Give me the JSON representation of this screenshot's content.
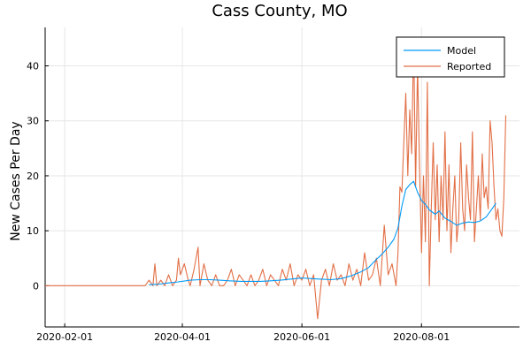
{
  "chart_data": {
    "type": "line",
    "title": "Cass County, MO",
    "xlabel": "",
    "ylabel": "New Cases Per Day",
    "x_type": "date",
    "xlim": [
      "2020-01-22",
      "2020-09-20"
    ],
    "ylim": [
      -7.5,
      47
    ],
    "x_ticks": [
      "2020-02-01",
      "2020-04-01",
      "2020-06-01",
      "2020-08-01"
    ],
    "y_ticks": [
      0,
      10,
      20,
      30,
      40
    ],
    "grid": true,
    "legend_position": "top-right",
    "colors": {
      "Model": "#009af9",
      "Reported": "#e26f46",
      "axis": "#000000",
      "grid": "#e6e6e6"
    },
    "series": [
      {
        "name": "Model",
        "x": [
          "2020-03-15",
          "2020-03-20",
          "2020-03-25",
          "2020-03-30",
          "2020-04-05",
          "2020-04-10",
          "2020-04-15",
          "2020-04-20",
          "2020-04-25",
          "2020-05-01",
          "2020-05-06",
          "2020-05-11",
          "2020-05-16",
          "2020-05-21",
          "2020-05-26",
          "2020-06-01",
          "2020-06-06",
          "2020-06-11",
          "2020-06-16",
          "2020-06-21",
          "2020-06-26",
          "2020-07-01",
          "2020-07-05",
          "2020-07-09",
          "2020-07-12",
          "2020-07-15",
          "2020-07-18",
          "2020-07-20",
          "2020-07-22",
          "2020-07-24",
          "2020-07-26",
          "2020-07-28",
          "2020-07-30",
          "2020-08-01",
          "2020-08-03",
          "2020-08-05",
          "2020-08-08",
          "2020-08-10",
          "2020-08-13",
          "2020-08-16",
          "2020-08-19",
          "2020-08-22",
          "2020-08-25",
          "2020-08-28",
          "2020-08-31",
          "2020-09-03",
          "2020-09-06",
          "2020-09-08"
        ],
        "values": [
          0.2,
          0.3,
          0.5,
          0.7,
          1.0,
          1.1,
          1.1,
          1.0,
          0.9,
          0.8,
          0.8,
          0.8,
          0.9,
          1.0,
          1.2,
          1.4,
          1.3,
          1.2,
          1.1,
          1.3,
          1.8,
          2.5,
          3.3,
          4.8,
          5.8,
          7.0,
          8.5,
          10.5,
          14.5,
          17.5,
          18.4,
          19.0,
          17.0,
          15.5,
          14.8,
          13.8,
          13.0,
          13.6,
          12.3,
          11.7,
          11.0,
          11.4,
          11.6,
          11.5,
          11.8,
          12.5,
          14.0,
          15.0
        ]
      },
      {
        "name": "Reported",
        "x": [
          "2020-01-22",
          "2020-03-13",
          "2020-03-15",
          "2020-03-17",
          "2020-03-18",
          "2020-03-19",
          "2020-03-21",
          "2020-03-23",
          "2020-03-25",
          "2020-03-27",
          "2020-03-29",
          "2020-03-30",
          "2020-03-31",
          "2020-04-02",
          "2020-04-04",
          "2020-04-05",
          "2020-04-07",
          "2020-04-09",
          "2020-04-10",
          "2020-04-12",
          "2020-04-14",
          "2020-04-16",
          "2020-04-18",
          "2020-04-20",
          "2020-04-22",
          "2020-04-24",
          "2020-04-26",
          "2020-04-28",
          "2020-04-30",
          "2020-05-02",
          "2020-05-04",
          "2020-05-06",
          "2020-05-08",
          "2020-05-10",
          "2020-05-12",
          "2020-05-14",
          "2020-05-16",
          "2020-05-18",
          "2020-05-20",
          "2020-05-22",
          "2020-05-24",
          "2020-05-26",
          "2020-05-28",
          "2020-05-30",
          "2020-06-01",
          "2020-06-03",
          "2020-06-05",
          "2020-06-07",
          "2020-06-09",
          "2020-06-11",
          "2020-06-13",
          "2020-06-15",
          "2020-06-17",
          "2020-06-19",
          "2020-06-21",
          "2020-06-23",
          "2020-06-25",
          "2020-06-27",
          "2020-06-29",
          "2020-07-01",
          "2020-07-03",
          "2020-07-05",
          "2020-07-07",
          "2020-07-09",
          "2020-07-11",
          "2020-07-13",
          "2020-07-15",
          "2020-07-17",
          "2020-07-19",
          "2020-07-20",
          "2020-07-21",
          "2020-07-22",
          "2020-07-23",
          "2020-07-24",
          "2020-07-25",
          "2020-07-26",
          "2020-07-27",
          "2020-07-28",
          "2020-07-29",
          "2020-07-30",
          "2020-07-31",
          "2020-08-01",
          "2020-08-02",
          "2020-08-03",
          "2020-08-04",
          "2020-08-05",
          "2020-08-06",
          "2020-08-07",
          "2020-08-08",
          "2020-08-09",
          "2020-08-10",
          "2020-08-11",
          "2020-08-12",
          "2020-08-13",
          "2020-08-14",
          "2020-08-15",
          "2020-08-16",
          "2020-08-17",
          "2020-08-18",
          "2020-08-19",
          "2020-08-20",
          "2020-08-21",
          "2020-08-22",
          "2020-08-23",
          "2020-08-24",
          "2020-08-25",
          "2020-08-26",
          "2020-08-27",
          "2020-08-28",
          "2020-08-29",
          "2020-08-30",
          "2020-08-31",
          "2020-09-01",
          "2020-09-02",
          "2020-09-03",
          "2020-09-04",
          "2020-09-05",
          "2020-09-06",
          "2020-09-07",
          "2020-09-08",
          "2020-09-09",
          "2020-09-10",
          "2020-09-11",
          "2020-09-12",
          "2020-09-13"
        ],
        "values": [
          0,
          0,
          1,
          0,
          4,
          0,
          1,
          0,
          2,
          0,
          1,
          5,
          2,
          4,
          1,
          0,
          3,
          7,
          0,
          4,
          1,
          0,
          2,
          0,
          0,
          1,
          3,
          0,
          2,
          1,
          0,
          2,
          0,
          1,
          3,
          0,
          2,
          1,
          0,
          3,
          1,
          4,
          0,
          2,
          1,
          3,
          0,
          2,
          -6,
          1,
          3,
          0,
          4,
          1,
          2,
          0,
          4,
          1,
          3,
          0,
          6,
          1,
          2,
          5,
          0,
          11,
          2,
          4,
          0,
          6,
          18,
          17,
          26,
          35,
          20,
          32,
          24,
          45,
          18,
          40,
          22,
          6,
          20,
          8,
          37,
          0,
          14,
          26,
          12,
          22,
          8,
          20,
          12,
          28,
          10,
          22,
          6,
          14,
          20,
          8,
          12,
          26,
          14,
          10,
          22,
          16,
          12,
          28,
          8,
          14,
          20,
          12,
          24,
          16,
          18,
          14,
          30,
          26,
          18,
          12,
          14,
          10,
          9,
          16,
          31
        ]
      }
    ]
  }
}
